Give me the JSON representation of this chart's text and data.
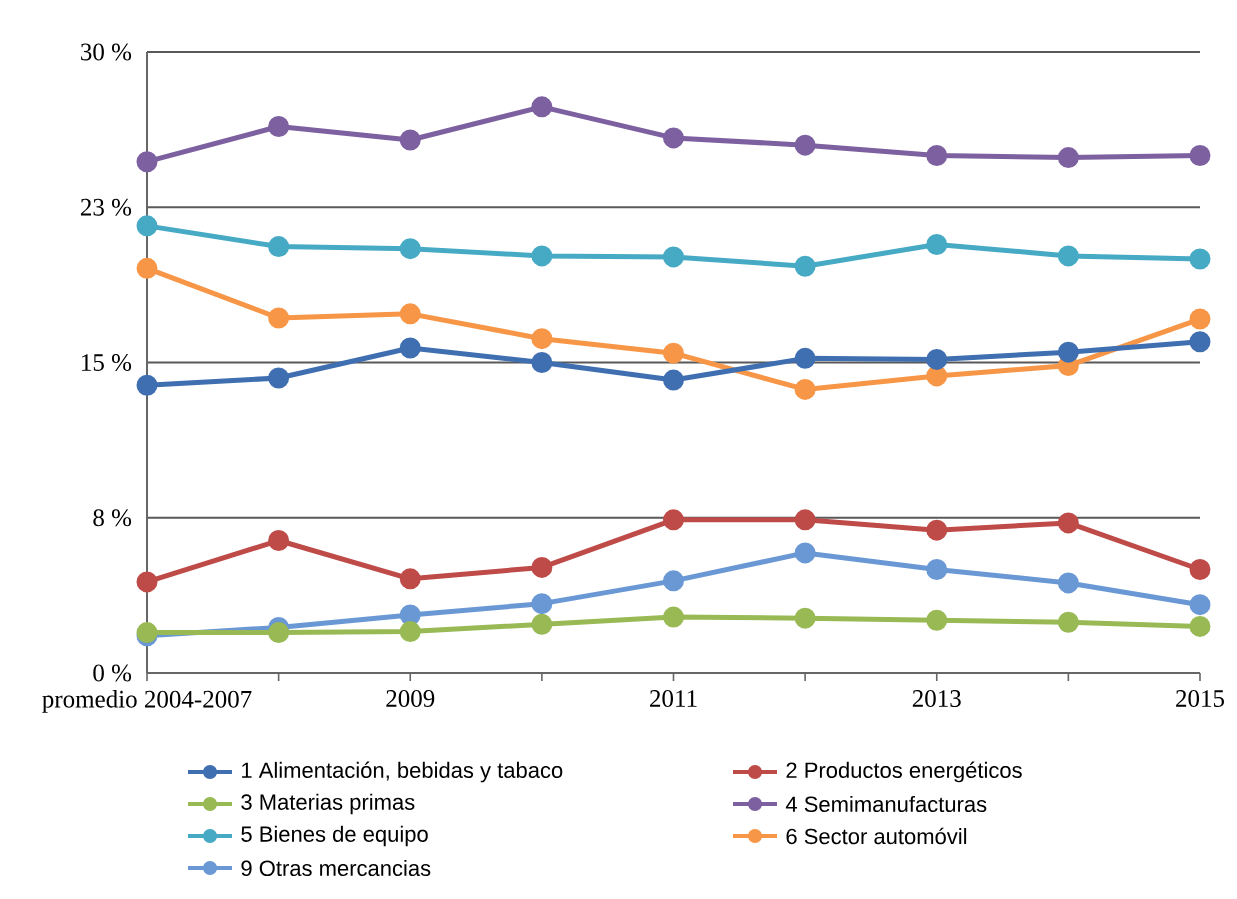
{
  "chart_data": {
    "type": "line",
    "categories": [
      "promedio 2004-2007",
      null,
      "2009",
      null,
      "2011",
      null,
      "2013",
      null,
      "2015"
    ],
    "ylim": [
      0,
      30
    ],
    "yticks": [
      {
        "value": 0,
        "label": "0 %"
      },
      {
        "value": 7.5,
        "label": "8 %"
      },
      {
        "value": 15,
        "label": "15 %"
      },
      {
        "value": 22.5,
        "label": "23 %"
      },
      {
        "value": 30,
        "label": "30 %"
      }
    ],
    "grid": "y",
    "legend": "bottom",
    "marker": "circle",
    "line_style": "solid",
    "series": [
      {
        "name": "1 Alimentación, bebidas y tabaco",
        "color": "#3f6fb0",
        "values": [
          13.9,
          14.25,
          15.7,
          15.0,
          14.15,
          15.2,
          15.15,
          15.5,
          16.0
        ]
      },
      {
        "name": "2 Productos energéticos",
        "color": "#be4b48",
        "values": [
          4.4,
          6.4,
          4.55,
          5.1,
          7.4,
          7.4,
          6.9,
          7.25,
          5.0
        ]
      },
      {
        "name": "3 Materias primas",
        "color": "#98b954",
        "values": [
          1.95,
          1.95,
          2.0,
          2.35,
          2.7,
          2.65,
          2.55,
          2.45,
          2.25
        ]
      },
      {
        "name": "4 Semimanufacturas",
        "color": "#7d60a0",
        "values": [
          24.7,
          26.4,
          25.75,
          27.35,
          25.85,
          25.5,
          25.0,
          24.9,
          25.0
        ]
      },
      {
        "name": "5 Bienes de equipo",
        "color": "#46aac5",
        "values": [
          21.6,
          20.6,
          20.5,
          20.15,
          20.1,
          19.65,
          20.7,
          20.15,
          20.0
        ]
      },
      {
        "name": "6 Sector automóvil",
        "color": "#f79646",
        "values": [
          19.55,
          17.15,
          17.35,
          16.15,
          15.45,
          13.7,
          14.35,
          14.85,
          17.1
        ]
      },
      {
        "name": "9 Otras mercancias",
        "color": "#6a98d4",
        "values": [
          1.8,
          2.2,
          2.8,
          3.35,
          4.45,
          5.8,
          5.0,
          4.35,
          3.3
        ]
      }
    ]
  }
}
